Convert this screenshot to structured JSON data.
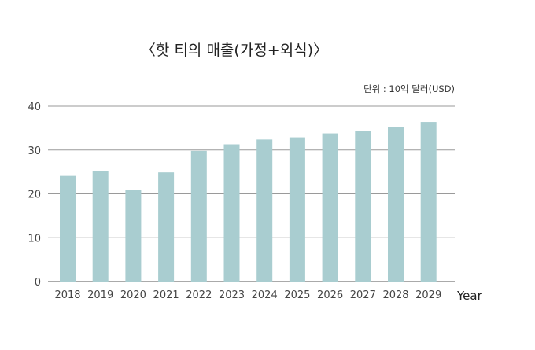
{
  "chart_data": {
    "type": "bar",
    "title": "〈핫 티의 매출(가정+외식)〉",
    "unit_label": "단위 : 10억 달러(USD)",
    "xlabel": "Year",
    "ylabel": "",
    "categories": [
      "2018",
      "2019",
      "2020",
      "2021",
      "2022",
      "2023",
      "2024",
      "2025",
      "2026",
      "2027",
      "2028",
      "2029"
    ],
    "values": [
      24.1,
      25.2,
      20.9,
      24.9,
      29.8,
      31.3,
      32.4,
      32.9,
      33.8,
      34.4,
      35.3,
      36.4
    ],
    "ylim": [
      0,
      40
    ],
    "yticks": [
      0,
      10,
      20,
      30,
      40
    ],
    "grid": true,
    "legend": "none",
    "bar_color": "#a9cdd0"
  }
}
